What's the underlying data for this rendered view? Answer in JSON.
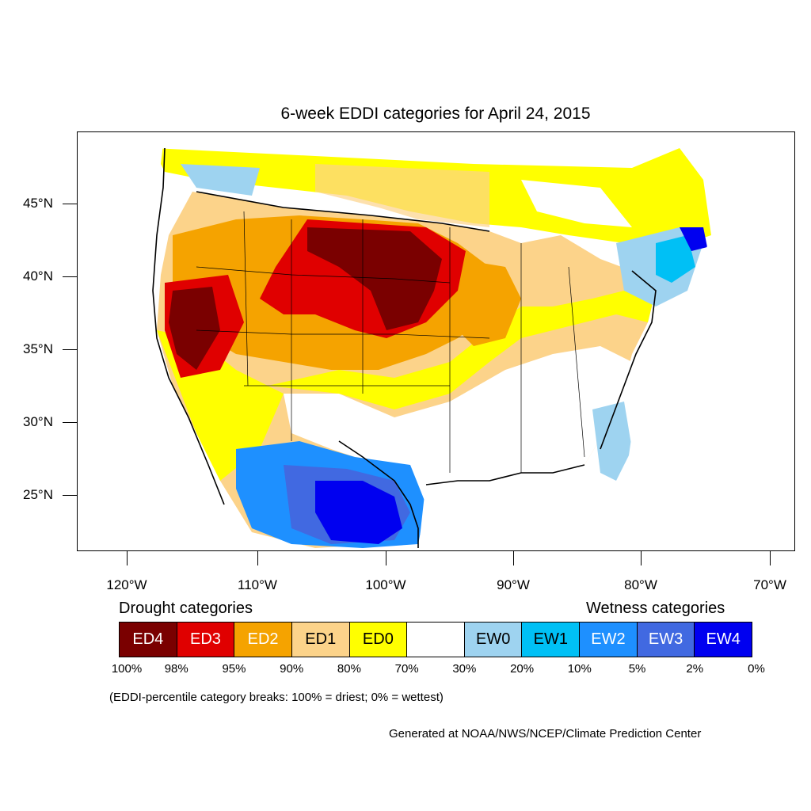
{
  "title": "6-week EDDI categories for April 24, 2015",
  "map": {
    "latitude_labels": [
      "45°N",
      "40°N",
      "35°N",
      "30°N",
      "25°N"
    ],
    "longitude_labels": [
      "120°W",
      "110°W",
      "100°W",
      "90°W",
      "80°W",
      "70°W"
    ],
    "colors": {
      "ED4": "#7a0000",
      "ED3": "#e00000",
      "ED2": "#f5a300",
      "ED1": "#fcd38a",
      "ED0": "#ffff00",
      "neutral": "#ffffff",
      "EW0": "#9ed3f0",
      "EW1": "#00c0f5",
      "EW2": "#1e90ff",
      "EW3": "#4169e1",
      "EW4": "#0000f0"
    }
  },
  "legend": {
    "drought_heading": "Drought categories",
    "wetness_heading": "Wetness categories",
    "categories": [
      {
        "label": "ED4",
        "color": "#7a0000",
        "text_color": "#ffffff"
      },
      {
        "label": "ED3",
        "color": "#e00000",
        "text_color": "#ffffff"
      },
      {
        "label": "ED2",
        "color": "#f5a300",
        "text_color": "#ffffff"
      },
      {
        "label": "ED1",
        "color": "#fcd38a",
        "text_color": "#000000"
      },
      {
        "label": "ED0",
        "color": "#ffff00",
        "text_color": "#000000"
      },
      {
        "label": "",
        "color": "#ffffff",
        "text_color": "#000000"
      },
      {
        "label": "EW0",
        "color": "#9ed3f0",
        "text_color": "#000000"
      },
      {
        "label": "EW1",
        "color": "#00c0f5",
        "text_color": "#000000"
      },
      {
        "label": "EW2",
        "color": "#1e90ff",
        "text_color": "#ffffff"
      },
      {
        "label": "EW3",
        "color": "#4169e1",
        "text_color": "#ffffff"
      },
      {
        "label": "EW4",
        "color": "#0000f0",
        "text_color": "#ffffff"
      }
    ],
    "breaks": [
      "100%",
      "98%",
      "95%",
      "90%",
      "80%",
      "70%",
      "30%",
      "20%",
      "10%",
      "5%",
      "2%",
      "0%"
    ]
  },
  "breaks_note": "(EDDI-percentile category breaks: 100% = driest; 0% = wettest)",
  "credit": "Generated at NOAA/NWS/NCEP/Climate Prediction Center"
}
